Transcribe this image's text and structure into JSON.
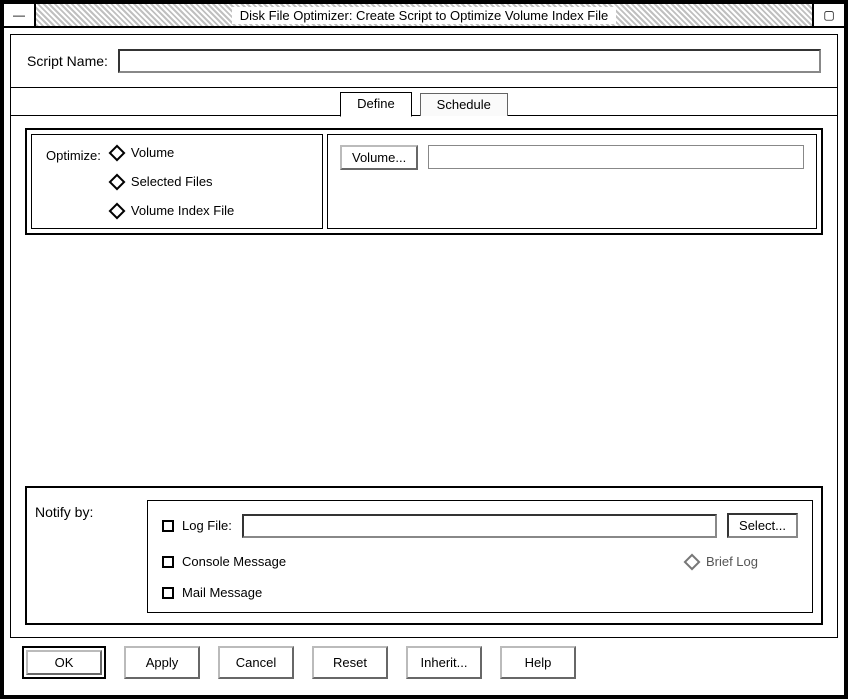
{
  "window_title": "Disk File Optimizer: Create Script to Optimize Volume Index File",
  "script_name": {
    "label": "Script Name:",
    "value": ""
  },
  "tabs": {
    "define": "Define",
    "schedule": "Schedule",
    "active": "define"
  },
  "optimize": {
    "label": "Optimize:",
    "options": {
      "volume": "Volume",
      "selected_files": "Selected Files",
      "volume_index_file": "Volume Index File"
    },
    "volume_button": "Volume...",
    "volume_value": ""
  },
  "notify": {
    "label": "Notify by:",
    "log_file_label": "Log File:",
    "log_file_value": "",
    "select_button": "Select...",
    "console_message": "Console Message",
    "brief_log": "Brief Log",
    "mail_message": "Mail Message"
  },
  "buttons": {
    "ok": "OK",
    "apply": "Apply",
    "cancel": "Cancel",
    "reset": "Reset",
    "inherit": "Inherit...",
    "help": "Help"
  },
  "colors": {
    "background": "#ffffff",
    "border": "#000000",
    "hatch_a": "#c0c0c0",
    "hatch_b": "#ffffff",
    "dim_text": "#555555"
  }
}
